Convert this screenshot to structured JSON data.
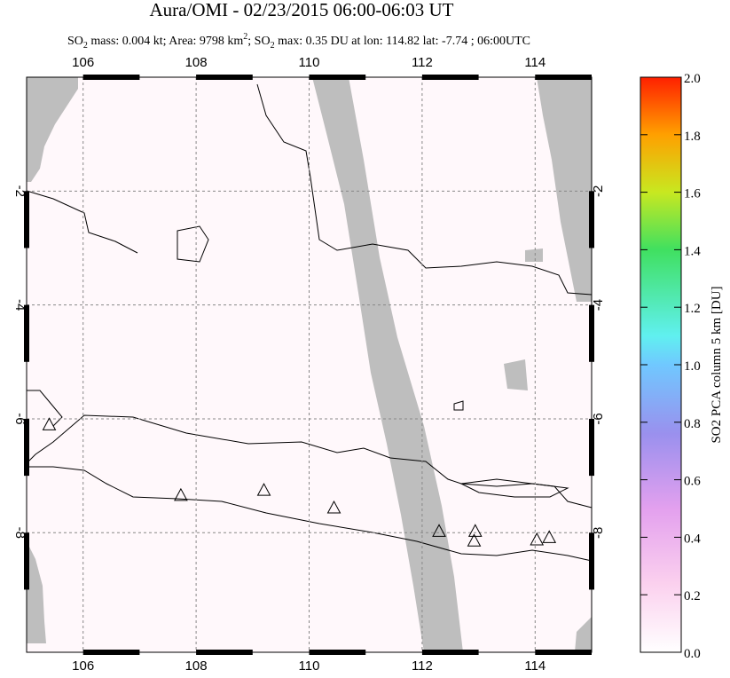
{
  "chart_data": {
    "type": "map",
    "title": "Aura/OMI - 02/23/2015 06:00-06:03 UT",
    "subtitle": [
      "SO",
      "2",
      " mass: 0.004 kt; Area: 9798 km",
      "2",
      "; SO",
      "2",
      " max: 0.35 DU at lon: 114.82 lat: -7.74 ; 06:00UTC"
    ],
    "xlim": [
      105,
      115
    ],
    "ylim": [
      -10.1,
      0
    ],
    "xticks": [
      106,
      108,
      110,
      112,
      114
    ],
    "yticks": [
      -2,
      -4,
      -6,
      -8
    ],
    "grid": true,
    "volcanoes": {
      "lon": [
        105.4,
        107.73,
        109.2,
        110.44,
        112.3,
        112.94,
        112.92,
        114.03,
        114.25
      ],
      "lat": [
        -6.1,
        -7.34,
        -7.25,
        -7.56,
        -7.97,
        -7.97,
        -8.14,
        -8.12,
        -8.08
      ]
    },
    "colorbar": {
      "label": "SO2 PCA column 5 km [DU]",
      "lim": [
        0,
        2
      ],
      "ticks": [
        {
          "value": 0,
          "label": "0.0"
        },
        0.2,
        0.4,
        0.6,
        0.8,
        {
          "value": 1,
          "label": "1.0"
        },
        1.2,
        1.4,
        1.6,
        1.8,
        {
          "value": 2,
          "label": "2.0"
        }
      ]
    }
  }
}
